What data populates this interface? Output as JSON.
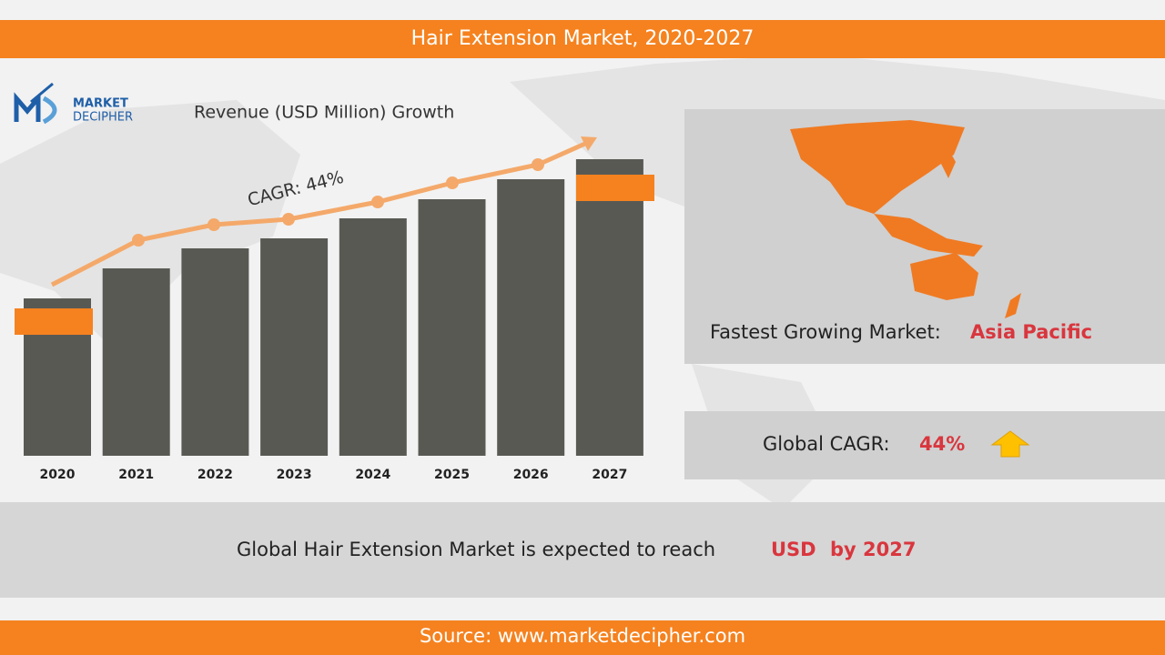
{
  "header": {
    "title": "Hair Extension Market, 2020-2027"
  },
  "logo": {
    "line1": "MARKET",
    "line2": "DECIPHER"
  },
  "chart_data": {
    "type": "bar",
    "subtitle": "Revenue (USD Million) Growth",
    "annotation": "CAGR: 44%",
    "categories": [
      "2020",
      "2021",
      "2022",
      "2023",
      "2024",
      "2025",
      "2026",
      "2027"
    ],
    "values": [
      173,
      206,
      228,
      239,
      261,
      282,
      304,
      326
    ],
    "color": "#595954",
    "ylim": [
      0,
      330
    ]
  },
  "fastest_growing": {
    "label": "Fastest Growing Market:",
    "value": "Asia Pacific"
  },
  "global_cagr": {
    "label": "Global CAGR:",
    "value": "44%"
  },
  "summary": {
    "text": "Global Hair Extension Market is expected to reach",
    "currency": "USD",
    "suffix": "by 2027"
  },
  "footer": {
    "source": "Source: www.marketdecipher.com"
  }
}
